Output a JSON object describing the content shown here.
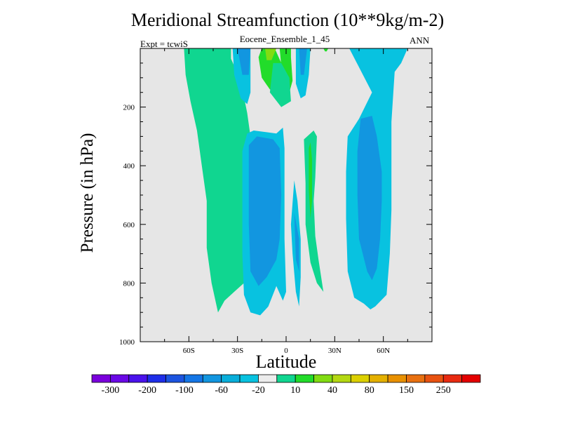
{
  "chart_data": {
    "type": "contour",
    "title": "Meridional Streamfunction (10**9kg/m-2)",
    "subtitle": "Eocene_Ensemble_1_45",
    "expt_label": "Expt = tcwiS",
    "season": "ANN",
    "xlabel": "Latitude",
    "ylabel": "Pressure (in hPa)",
    "xlim": [
      -90,
      90
    ],
    "ylim": [
      1000,
      0
    ],
    "y_reversed": true,
    "x_ticks": [
      {
        "value": -60,
        "label": "60S"
      },
      {
        "value": -30,
        "label": "30S"
      },
      {
        "value": 0,
        "label": "0"
      },
      {
        "value": 30,
        "label": "30N"
      },
      {
        "value": 60,
        "label": "60N"
      }
    ],
    "y_ticks": [
      {
        "value": 200,
        "label": "200"
      },
      {
        "value": 400,
        "label": "400"
      },
      {
        "value": 600,
        "label": "600"
      },
      {
        "value": 800,
        "label": "800"
      },
      {
        "value": 1000,
        "label": "1000"
      }
    ],
    "background_color": "#e6e6e6",
    "colorbar": {
      "colors": [
        "#7a00dc",
        "#6a08e6",
        "#4a12ec",
        "#1e2ee8",
        "#1c54e0",
        "#1476e6",
        "#1296e0",
        "#08aeda",
        "#08c2e0",
        "#ececec",
        "#10d690",
        "#22dc2a",
        "#82dc12",
        "#b4d812",
        "#dcd000",
        "#e4b000",
        "#e89000",
        "#e87010",
        "#e85210",
        "#e82a10",
        "#e40000"
      ],
      "label_slots": [
        1,
        3,
        5,
        7,
        9,
        11,
        13,
        15,
        17,
        19
      ],
      "labels": [
        "-300",
        "-200",
        "-100",
        "-60",
        "-20",
        "10",
        "40",
        "80",
        "150",
        "250"
      ]
    },
    "regions": [
      {
        "color": "#10d690",
        "points": [
          [
            -45,
            0
          ],
          [
            -34,
            0
          ],
          [
            -34,
            35
          ],
          [
            -28,
            110
          ],
          [
            -24,
            220
          ],
          [
            -22,
            300
          ],
          [
            -22,
            400
          ],
          [
            -24,
            560
          ],
          [
            -24,
            700
          ],
          [
            -26,
            800
          ],
          [
            -32,
            830
          ],
          [
            -38,
            860
          ],
          [
            -42,
            900
          ],
          [
            -46,
            800
          ],
          [
            -49,
            680
          ],
          [
            -49,
            520
          ],
          [
            -52,
            400
          ],
          [
            -55,
            280
          ],
          [
            -59,
            180
          ],
          [
            -62,
            90
          ],
          [
            -63,
            0
          ]
        ]
      },
      {
        "color": "#08c2e0",
        "points": [
          [
            -33,
            0
          ],
          [
            -22,
            0
          ],
          [
            -22,
            150
          ],
          [
            -24,
            190
          ],
          [
            -28,
            170
          ],
          [
            -32,
            90
          ]
        ]
      },
      {
        "color": "#1296e0",
        "points": [
          [
            -30,
            0
          ],
          [
            -22,
            0
          ],
          [
            -23,
            90
          ],
          [
            -27,
            90
          ]
        ]
      },
      {
        "color": "#22dc2a",
        "points": [
          [
            -15,
            0
          ],
          [
            -7,
            0
          ],
          [
            -3,
            50
          ],
          [
            -3,
            140
          ],
          [
            -10,
            140
          ],
          [
            -15,
            100
          ],
          [
            -17,
            30
          ]
        ]
      },
      {
        "color": "#82dc12",
        "points": [
          [
            -13,
            0
          ],
          [
            -6,
            0
          ],
          [
            -9,
            40
          ],
          [
            -12,
            40
          ]
        ]
      },
      {
        "color": "#22dc2a",
        "points": [
          [
            -4,
            0
          ],
          [
            3,
            0
          ],
          [
            3,
            30
          ],
          [
            4,
            110
          ],
          [
            1,
            170
          ],
          [
            -2,
            120
          ]
        ]
      },
      {
        "color": "#10d690",
        "points": [
          [
            -8,
            50
          ],
          [
            -3,
            50
          ],
          [
            2,
            100
          ],
          [
            3,
            180
          ],
          [
            -3,
            200
          ],
          [
            -10,
            150
          ]
        ]
      },
      {
        "color": "#08c2e0",
        "points": [
          [
            6,
            0
          ],
          [
            15,
            0
          ],
          [
            14,
            90
          ],
          [
            12,
            160
          ],
          [
            9,
            170
          ],
          [
            6,
            120
          ]
        ]
      },
      {
        "color": "#1296e0",
        "points": [
          [
            8,
            0
          ],
          [
            13,
            0
          ],
          [
            11,
            90
          ],
          [
            9,
            90
          ]
        ]
      },
      {
        "color": "#22dc2a",
        "points": [
          [
            23,
            0
          ],
          [
            26,
            0
          ],
          [
            25,
            10
          ],
          [
            24,
            10
          ]
        ]
      },
      {
        "color": "#10d690",
        "points": [
          [
            11,
            310
          ],
          [
            17,
            280
          ],
          [
            19,
            300
          ],
          [
            18,
            440
          ],
          [
            17,
            520
          ],
          [
            18,
            640
          ],
          [
            20,
            720
          ],
          [
            23,
            830
          ],
          [
            19,
            800
          ],
          [
            15,
            730
          ],
          [
            12,
            600
          ],
          [
            12,
            460
          ]
        ]
      },
      {
        "color": "#22dc2a",
        "points": [
          [
            14,
            340
          ],
          [
            15,
            320
          ],
          [
            16,
            380
          ],
          [
            16,
            520
          ],
          [
            15,
            580
          ],
          [
            14,
            480
          ]
        ]
      },
      {
        "color": "#08c2e0",
        "points": [
          [
            -1,
            0
          ],
          [
            -1,
            0
          ],
          [
            -1,
            0
          ]
        ]
      },
      {
        "color": "#08c2e0",
        "points": [
          [
            -6,
            290
          ],
          [
            -2,
            270
          ],
          [
            -1,
            340
          ],
          [
            -1,
            500
          ],
          [
            -1,
            650
          ],
          [
            0,
            830
          ],
          [
            -2,
            860
          ],
          [
            -6,
            810
          ],
          [
            -11,
            880
          ],
          [
            -16,
            910
          ],
          [
            -22,
            900
          ],
          [
            -26,
            840
          ],
          [
            -27,
            700
          ],
          [
            -27,
            500
          ],
          [
            -27,
            350
          ],
          [
            -24,
            290
          ],
          [
            -20,
            280
          ]
        ]
      },
      {
        "color": "#1296e0",
        "points": [
          [
            -23,
            330
          ],
          [
            -18,
            300
          ],
          [
            -8,
            310
          ],
          [
            -4,
            340
          ],
          [
            -3,
            500
          ],
          [
            -4,
            650
          ],
          [
            -6,
            720
          ],
          [
            -12,
            780
          ],
          [
            -17,
            810
          ],
          [
            -22,
            760
          ],
          [
            -23,
            600
          ],
          [
            -23,
            450
          ]
        ]
      },
      {
        "color": "#08c2e0",
        "points": [
          [
            5,
            450
          ],
          [
            7,
            520
          ],
          [
            9,
            650
          ],
          [
            9,
            780
          ],
          [
            8,
            880
          ],
          [
            6,
            830
          ],
          [
            4,
            700
          ],
          [
            3,
            600
          ]
        ]
      },
      {
        "color": "#1296e0",
        "points": [
          [
            5,
            560
          ],
          [
            8,
            650
          ],
          [
            8,
            760
          ],
          [
            6,
            720
          ]
        ]
      },
      {
        "color": "#08c2e0",
        "points": [
          [
            39,
            0
          ],
          [
            75,
            0
          ],
          [
            71,
            50
          ],
          [
            67,
            80
          ],
          [
            65,
            250
          ],
          [
            65,
            550
          ],
          [
            64,
            700
          ],
          [
            62,
            840
          ],
          [
            55,
            880
          ],
          [
            52,
            890
          ],
          [
            48,
            870
          ],
          [
            42,
            850
          ],
          [
            38,
            760
          ],
          [
            37,
            580
          ],
          [
            37,
            420
          ],
          [
            38,
            300
          ],
          [
            45,
            240
          ],
          [
            53,
            150
          ]
        ]
      },
      {
        "color": "#1296e0",
        "points": [
          [
            46,
            240
          ],
          [
            53,
            230
          ],
          [
            56,
            300
          ],
          [
            59,
            420
          ],
          [
            59,
            520
          ],
          [
            58,
            650
          ],
          [
            56,
            750
          ],
          [
            53,
            790
          ],
          [
            50,
            760
          ],
          [
            45,
            650
          ],
          [
            44,
            500
          ],
          [
            44,
            350
          ]
        ]
      }
    ]
  }
}
